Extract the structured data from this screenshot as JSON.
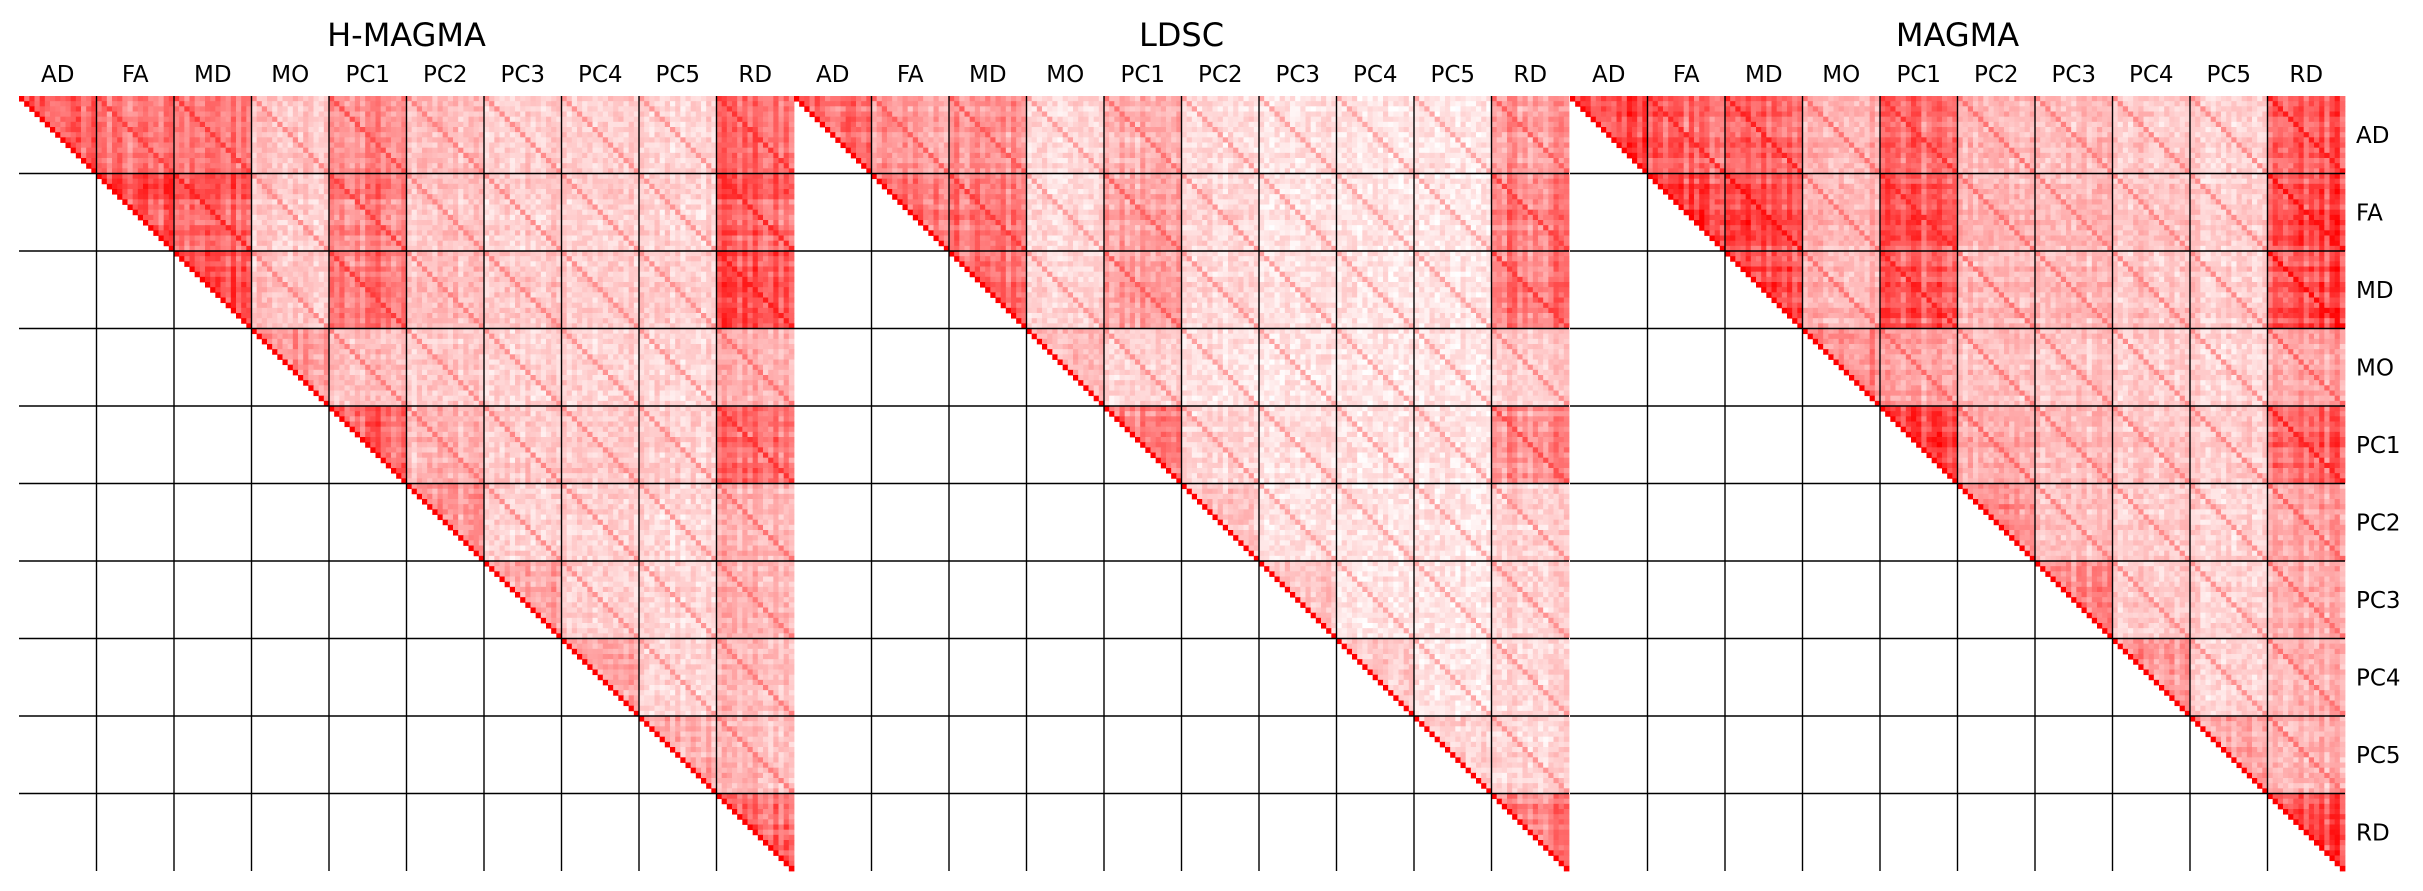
{
  "chart_data": {
    "type": "heatmap",
    "layout": "upper-triangular correlation matrices, three panels side by side",
    "colormap": {
      "positive": "#ff0000",
      "zero": "#ffffff",
      "negative": "#5a78ff"
    },
    "groups": [
      "AD",
      "FA",
      "MD",
      "MO",
      "PC1",
      "PC2",
      "PC3",
      "PC4",
      "PC5",
      "RD"
    ],
    "panels": [
      {
        "title": "H-MAGMA",
        "block_mean_correlation": [
          [
            0.62,
            0.5,
            0.52,
            0.22,
            0.44,
            0.24,
            0.2,
            0.18,
            0.16,
            0.55
          ],
          [
            0.5,
            0.66,
            0.62,
            0.2,
            0.5,
            0.22,
            0.2,
            0.18,
            0.17,
            0.6
          ],
          [
            0.52,
            0.62,
            0.68,
            0.22,
            0.52,
            0.24,
            0.22,
            0.19,
            0.18,
            0.64
          ],
          [
            0.22,
            0.2,
            0.22,
            0.4,
            0.26,
            0.2,
            0.18,
            0.17,
            0.16,
            0.3
          ],
          [
            0.44,
            0.5,
            0.52,
            0.26,
            0.62,
            0.28,
            0.22,
            0.2,
            0.19,
            0.55
          ],
          [
            0.24,
            0.22,
            0.24,
            0.2,
            0.28,
            0.4,
            0.2,
            0.18,
            0.16,
            0.3
          ],
          [
            0.2,
            0.2,
            0.22,
            0.18,
            0.22,
            0.2,
            0.36,
            0.18,
            0.16,
            0.28
          ],
          [
            0.18,
            0.18,
            0.19,
            0.17,
            0.2,
            0.18,
            0.18,
            0.34,
            0.16,
            0.26
          ],
          [
            0.16,
            0.17,
            0.18,
            0.16,
            0.19,
            0.16,
            0.16,
            0.16,
            0.32,
            0.26
          ],
          [
            0.55,
            0.6,
            0.64,
            0.3,
            0.55,
            0.3,
            0.28,
            0.26,
            0.26,
            0.62
          ]
        ]
      },
      {
        "title": "LDSC",
        "block_mean_correlation": [
          [
            0.52,
            0.38,
            0.4,
            0.14,
            0.3,
            0.14,
            0.12,
            0.1,
            0.1,
            0.38
          ],
          [
            0.38,
            0.56,
            0.52,
            0.14,
            0.36,
            0.16,
            0.12,
            0.1,
            0.1,
            0.5
          ],
          [
            0.4,
            0.52,
            0.58,
            0.16,
            0.38,
            0.16,
            0.13,
            0.11,
            0.11,
            0.52
          ],
          [
            0.14,
            0.14,
            0.16,
            0.26,
            0.18,
            0.12,
            0.11,
            0.1,
            0.1,
            0.2
          ],
          [
            0.3,
            0.36,
            0.38,
            0.18,
            0.5,
            0.16,
            0.13,
            0.11,
            0.11,
            0.45
          ],
          [
            0.14,
            0.16,
            0.16,
            0.12,
            0.16,
            0.24,
            0.11,
            0.1,
            0.1,
            0.18
          ],
          [
            0.12,
            0.12,
            0.13,
            0.11,
            0.13,
            0.11,
            0.22,
            0.1,
            0.1,
            0.18
          ],
          [
            0.1,
            0.1,
            0.11,
            0.1,
            0.11,
            0.1,
            0.1,
            0.2,
            0.1,
            0.16
          ],
          [
            0.1,
            0.1,
            0.11,
            0.1,
            0.11,
            0.1,
            0.1,
            0.1,
            0.2,
            0.17
          ],
          [
            0.38,
            0.5,
            0.52,
            0.2,
            0.45,
            0.18,
            0.18,
            0.16,
            0.17,
            0.5
          ]
        ]
      },
      {
        "title": "MAGMA",
        "block_mean_correlation": [
          [
            0.7,
            0.6,
            0.62,
            0.3,
            0.55,
            0.3,
            0.25,
            0.22,
            0.2,
            0.65
          ],
          [
            0.6,
            0.74,
            0.7,
            0.28,
            0.6,
            0.3,
            0.25,
            0.22,
            0.2,
            0.7
          ],
          [
            0.62,
            0.7,
            0.76,
            0.3,
            0.62,
            0.3,
            0.26,
            0.23,
            0.21,
            0.72
          ],
          [
            0.3,
            0.28,
            0.3,
            0.46,
            0.34,
            0.26,
            0.22,
            0.2,
            0.18,
            0.36
          ],
          [
            0.55,
            0.6,
            0.62,
            0.34,
            0.72,
            0.34,
            0.26,
            0.23,
            0.22,
            0.62
          ],
          [
            0.3,
            0.3,
            0.3,
            0.26,
            0.34,
            0.46,
            0.24,
            0.2,
            0.18,
            0.36
          ],
          [
            0.25,
            0.25,
            0.26,
            0.22,
            0.26,
            0.24,
            0.42,
            0.2,
            0.18,
            0.32
          ],
          [
            0.22,
            0.22,
            0.23,
            0.2,
            0.23,
            0.2,
            0.2,
            0.4,
            0.18,
            0.3
          ],
          [
            0.2,
            0.2,
            0.21,
            0.18,
            0.22,
            0.18,
            0.18,
            0.18,
            0.38,
            0.3
          ],
          [
            0.65,
            0.7,
            0.72,
            0.36,
            0.62,
            0.36,
            0.32,
            0.3,
            0.3,
            0.7
          ]
        ]
      }
    ]
  }
}
